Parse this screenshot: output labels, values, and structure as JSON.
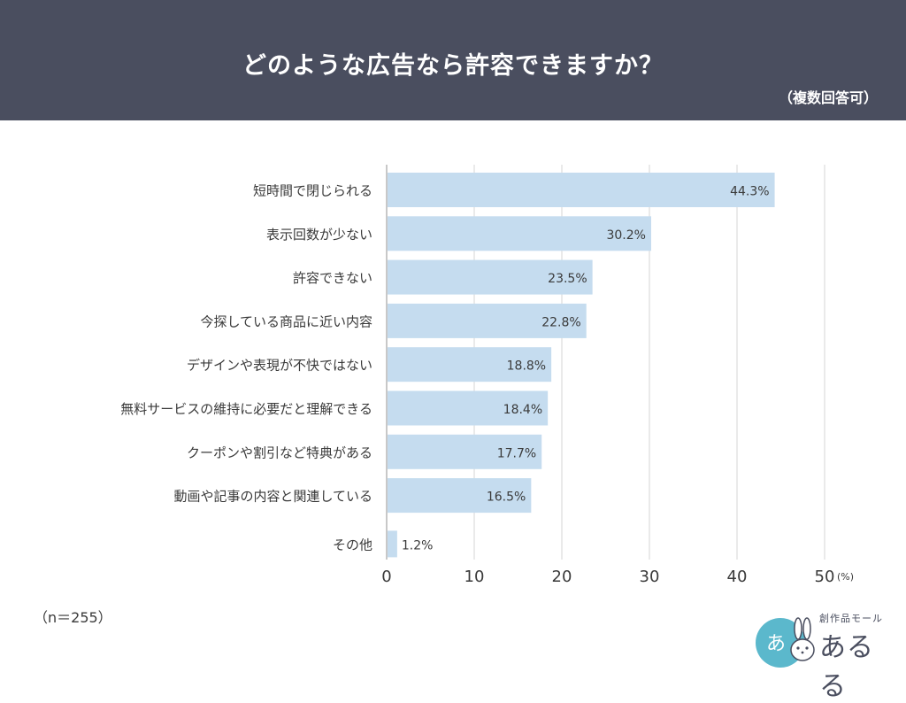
{
  "header": {
    "title": "どのような広告なら許容できますか？",
    "subtitle": "（複数回答可）"
  },
  "note": "（n＝255）",
  "logo": {
    "top_text": "創作品モール",
    "name": "あるる",
    "mark_text": "あ",
    "icon": "rabbit-icon"
  },
  "colors": {
    "header_bg": "#4a4e5f",
    "bar": "#c5dcef",
    "grid": "#d6d6d6",
    "axis_text": "#3a3a3a",
    "logo_circle": "#5bb8cc"
  },
  "chart_data": {
    "type": "bar",
    "orientation": "horizontal",
    "categories": [
      "短時間で閉じられる",
      "表示回数が少ない",
      "許容できない",
      "今探している商品に近い内容",
      "デザインや表現が不快ではない",
      "無料サービスの維持に必要だと理解できる",
      "クーポンや割引など特典がある",
      "動画や記事の内容と関連している",
      "その他"
    ],
    "values": [
      44.3,
      30.2,
      23.5,
      22.8,
      18.8,
      18.4,
      17.7,
      16.5,
      1.2
    ],
    "value_labels": [
      "44.3%",
      "30.2%",
      "23.5%",
      "22.8%",
      "18.8%",
      "18.4%",
      "17.7%",
      "16.5%",
      "1.2%"
    ],
    "xlim": [
      0,
      50
    ],
    "xticks": [
      0,
      10,
      20,
      30,
      40,
      50
    ],
    "xtick_labels": [
      "0",
      "10",
      "20",
      "30",
      "40",
      "50"
    ],
    "xunit": "(%)",
    "grid": true
  }
}
